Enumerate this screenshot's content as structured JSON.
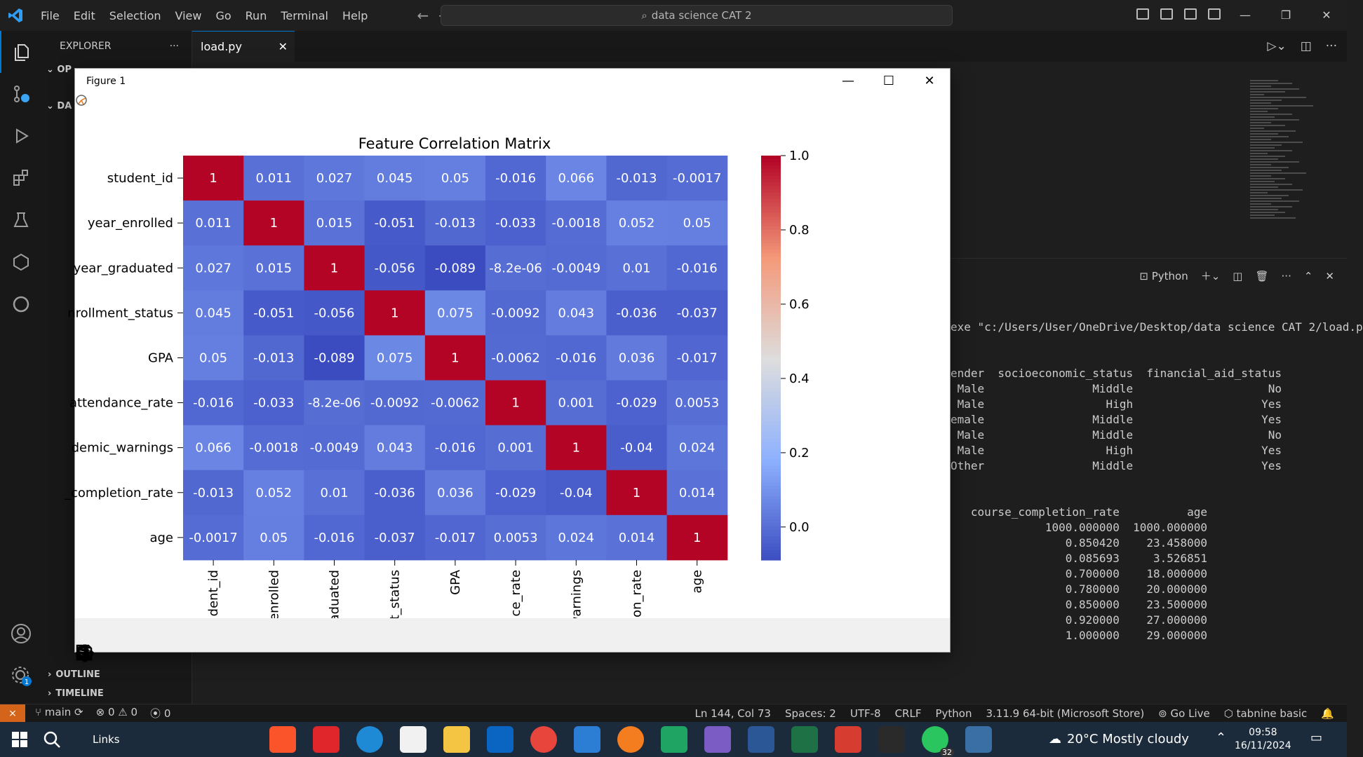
{
  "titlebar": {
    "menu": [
      "File",
      "Edit",
      "Selection",
      "View",
      "Go",
      "Run",
      "Terminal",
      "Help"
    ],
    "search_text": "data science CAT 2",
    "win_controls": [
      "—",
      "❐",
      "✕"
    ]
  },
  "sidebar": {
    "header": "EXPLORER",
    "more": "···",
    "sections": [
      "OP",
      "DA"
    ]
  },
  "tabs": {
    "active": "load.py",
    "close": "✕"
  },
  "panel": {
    "terminal_name": "Python"
  },
  "terminal": {
    "lines": [
      "exe \"c:/Users/User/OneDrive/Desktop/data science CAT 2/load.p",
      "",
      "",
      "ender  socioeconomic_status  financial_aid_status",
      " Male                Middle                    No",
      " Male                  High                   Yes",
      "emale                Middle                   Yes",
      " Male                Middle                    No",
      " Male                  High                   Yes",
      "Other                Middle                   Yes",
      "",
      "",
      "",
      "   course_completion_rate          age",
      "              1000.000000  1000.000000",
      "                 0.850420    23.458000",
      "                 0.085693     3.526851",
      "                 0.700000    18.000000",
      "                 0.780000    20.000000",
      "                 0.850000    23.500000",
      "                 0.920000    27.000000",
      "                 1.000000    29.000000"
    ]
  },
  "outline": [
    "OUTLINE",
    "TIMELINE"
  ],
  "statusbar": {
    "remote": "⨯",
    "branch": "main",
    "errors": "⊗ 0 ⚠ 0",
    "ports": "0",
    "position": "Ln 144, Col 73",
    "spaces": "Spaces: 2",
    "encoding": "UTF-8",
    "eol": "CRLF",
    "language": "Python",
    "interpreter": "3.11.9 64-bit (Microsoft Store)",
    "golive": "Go Live",
    "tabnine": "tabnine basic"
  },
  "taskbar": {
    "links": "Links",
    "weather": "20°C  Mostly cloudy",
    "time": "09:58",
    "date": "16/11/2024",
    "whatsapp_badge": "32",
    "settings_badge": "1"
  },
  "figure": {
    "window_title": "Figure 1",
    "controls": [
      "—",
      "☐",
      "✕"
    ]
  },
  "chart_data": {
    "type": "heatmap",
    "title": "Feature Correlation Matrix",
    "row_labels": [
      "student_id",
      "year_enrolled",
      "year_graduated",
      "nrollment_status",
      "GPA",
      "attendance_rate",
      "demic_warnings",
      "_completion_rate",
      "age"
    ],
    "col_labels": [
      "dent_id",
      "enrolled",
      "aduated",
      "t_status",
      "GPA",
      "ce_rate",
      "warnings",
      "ion_rate",
      "age"
    ],
    "cell_labels": [
      [
        "1",
        "0.011",
        "0.027",
        "0.045",
        "0.05",
        "-0.016",
        "0.066",
        "-0.013",
        "-0.0017"
      ],
      [
        "0.011",
        "1",
        "0.015",
        "-0.051",
        "-0.013",
        "-0.033",
        "-0.0018",
        "0.052",
        "0.05"
      ],
      [
        "0.027",
        "0.015",
        "1",
        "-0.056",
        "-0.089",
        "-8.2e-06",
        "-0.0049",
        "0.01",
        "-0.016"
      ],
      [
        "0.045",
        "-0.051",
        "-0.056",
        "1",
        "0.075",
        "-0.0092",
        "0.043",
        "-0.036",
        "-0.037"
      ],
      [
        "0.05",
        "-0.013",
        "-0.089",
        "0.075",
        "1",
        "-0.0062",
        "-0.016",
        "0.036",
        "-0.017"
      ],
      [
        "-0.016",
        "-0.033",
        "-8.2e-06",
        "-0.0092",
        "-0.0062",
        "1",
        "0.001",
        "-0.029",
        "0.0053"
      ],
      [
        "0.066",
        "-0.0018",
        "-0.0049",
        "0.043",
        "-0.016",
        "0.001",
        "1",
        "-0.04",
        "0.024"
      ],
      [
        "-0.013",
        "0.052",
        "0.01",
        "-0.036",
        "0.036",
        "-0.029",
        "-0.04",
        "1",
        "0.014"
      ],
      [
        "-0.0017",
        "0.05",
        "-0.016",
        "-0.037",
        "-0.017",
        "0.0053",
        "0.024",
        "0.014",
        "1"
      ]
    ],
    "colorbar": {
      "ticks": [
        "1.0",
        "0.8",
        "0.6",
        "0.4",
        "0.2",
        "0.0"
      ],
      "tick_values": [
        1.0,
        0.8,
        0.6,
        0.4,
        0.2,
        0.0
      ],
      "vmin": -0.089,
      "vmax": 1.0,
      "colormap": "coolwarm"
    }
  }
}
